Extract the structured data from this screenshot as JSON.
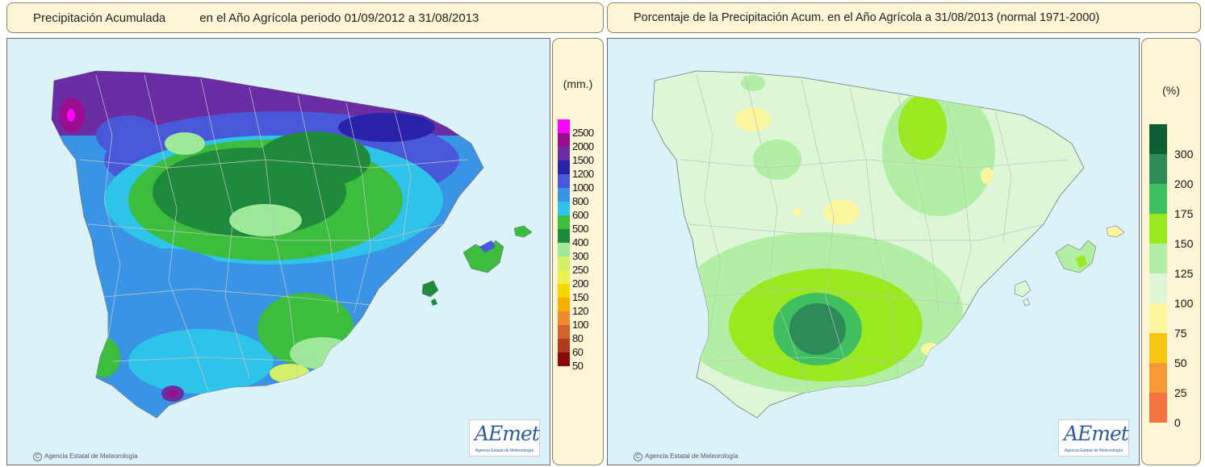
{
  "left_panel": {
    "title_part1": "Precipitación Acumulada",
    "title_part2": "en el Año Agrícola  periodo 01/09/2012 a 31/08/2013",
    "copyright": "Agencia Estatal de Meteorología",
    "logo_text": "AEmet",
    "logo_sub": "Agencia Estatal de Meteorología",
    "legend": {
      "unit": "(mm.)",
      "classes": [
        {
          "label": "2500",
          "color": "#ff00ff"
        },
        {
          "label": "2000",
          "color": "#9a0d8e"
        },
        {
          "label": "1500",
          "color": "#6a2da3"
        },
        {
          "label": "1200",
          "color": "#2722a8"
        },
        {
          "label": "1000",
          "color": "#4858d8"
        },
        {
          "label": "800",
          "color": "#3a94e6"
        },
        {
          "label": "600",
          "color": "#2ec3e8"
        },
        {
          "label": "500",
          "color": "#3dbd3d"
        },
        {
          "label": "400",
          "color": "#1f8a3c"
        },
        {
          "label": "300",
          "color": "#9ee89a"
        },
        {
          "label": "250",
          "color": "#d4f06a"
        },
        {
          "label": "200",
          "color": "#e9f24f"
        },
        {
          "label": "150",
          "color": "#f5d800"
        },
        {
          "label": "120",
          "color": "#f5b000"
        },
        {
          "label": "100",
          "color": "#f08a30"
        },
        {
          "label": "80",
          "color": "#d2622a"
        },
        {
          "label": "60",
          "color": "#b03a1e"
        },
        {
          "label": "50",
          "color": "#8a0a0a"
        }
      ]
    }
  },
  "right_panel": {
    "title": "Porcentaje de la Precipitación Acum. en el Año Agrícola a 31/08/2013  (normal 1971-2000)",
    "copyright": "Agencia Estatal de Meteorología",
    "logo_text": "AEmet",
    "logo_sub": "Agencia Estatal de Meteorología",
    "legend": {
      "unit": "(%)",
      "classes": [
        {
          "label": "300",
          "color": "#0f5e35"
        },
        {
          "label": "200",
          "color": "#2f8a5a"
        },
        {
          "label": "175",
          "color": "#3fbf5f"
        },
        {
          "label": "150",
          "color": "#9ae81e"
        },
        {
          "label": "125",
          "color": "#b2eea4"
        },
        {
          "label": "100",
          "color": "#ddf6d8"
        },
        {
          "label": "75",
          "color": "#fdf6a0"
        },
        {
          "label": "50",
          "color": "#f8c615"
        },
        {
          "label": "25",
          "color": "#f59a35"
        },
        {
          "label": "0",
          "color": "#f47340"
        }
      ]
    }
  },
  "colors": {
    "sea": "#dbf2fb",
    "title_bg": "#fdf5d6",
    "border": "#8a8468"
  }
}
